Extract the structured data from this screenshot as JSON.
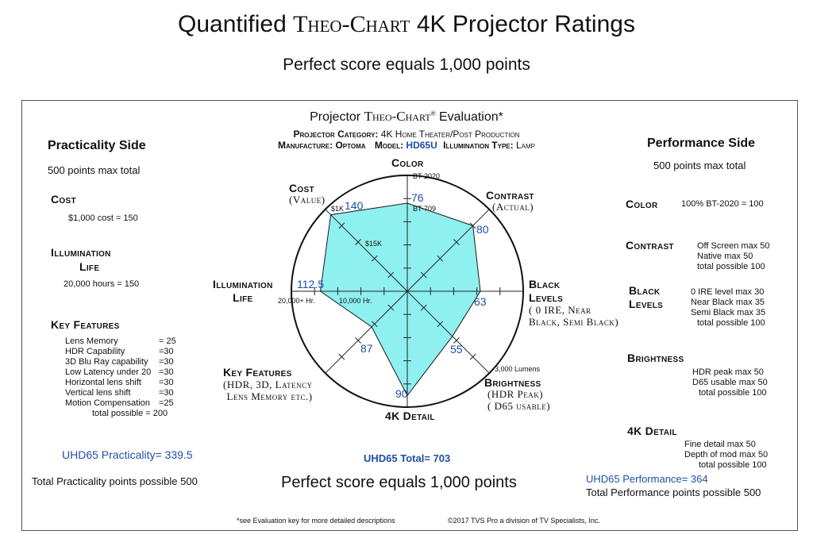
{
  "header": {
    "title_a": "Quantified",
    "title_b": "Theo-Chart",
    "title_c": "4K Projector Ratings",
    "subtitle": "Perfect score equals 1,000 points"
  },
  "evaluation": {
    "title_a": "Projector",
    "title_b": "Theo-Chart",
    "title_reg": "®",
    "title_c": "Evaluation*",
    "category_label": "Projector Category:",
    "category_value": "4K Home Theater/Post Production",
    "manufacture_label": "Manufacture:",
    "manufacture_value": "Optoma",
    "model_label": "Model:",
    "model_value": "HD65U",
    "illum_label": "Illumination Type:",
    "illum_value": "Lamp"
  },
  "practicality": {
    "title": "Practicality Side",
    "max_total": "500 points max total",
    "cost_title": "Cost",
    "cost_rule": "$1,000 cost  = 150",
    "illum_title_1": "Illumination",
    "illum_title_2": "Life",
    "illum_rule": "20,000 hours  = 150",
    "key_title": "Key Features",
    "key_rules": [
      {
        "label": "Lens Memory",
        "value": "= 25"
      },
      {
        "label": "HDR Capability",
        "value": "=30"
      },
      {
        "label": "3D Blu Ray capability",
        "value": "=30"
      },
      {
        "label": "Low Latency under 20",
        "value": "=30"
      },
      {
        "label": "Horizontal lens shift",
        "value": "=30"
      },
      {
        "label": "Vertical lens shift",
        "value": "=30"
      },
      {
        "label": "Motion Compensation",
        "value": "=25"
      }
    ],
    "key_total": "total possible  = 200",
    "score": "UHD65 Practicality= 339.5",
    "total_possible": "Total Practicality points possible 500"
  },
  "performance": {
    "title": "Performance Side",
    "max_total": "500 points max total",
    "color_title": "Color",
    "color_rule": "100% BT-2020 = 100",
    "contrast_title": "Contrast",
    "contrast_rules": [
      "Off Screen max 50",
      "Native        max 50",
      "total possible  100"
    ],
    "black_title_1": "Black",
    "black_title_2": "Levels",
    "black_rules": [
      "0 IRE level max  30",
      "Near Black max  35",
      "Semi Black max  35",
      "total possible  100"
    ],
    "brightness_title": "Brightness",
    "brightness_rules": [
      "HDR  peak max 50",
      "D65 usable max 50",
      "total possible 100"
    ],
    "detail_title": "4K Detail",
    "detail_rules": [
      "Fine detail max     50",
      "Depth of mod max 50",
      "total possible  100"
    ],
    "score": "UHD65 Performance= 364",
    "total_possible": "Total Performance points possible 500"
  },
  "footer": {
    "total": "UHD65 Total= 703",
    "perfect": "Perfect score equals 1,000 points",
    "note": "*see Evaluation key for more detailed descriptions",
    "copyright": "©2017 TVS Pro a division of TV Specialists, Inc."
  },
  "chart_data": {
    "type": "radar",
    "fill_color": "#8ff0f0",
    "outline_color": "#1a1a1a",
    "axes": [
      {
        "key": "color",
        "label": "Color",
        "sub": "",
        "value": 76,
        "max": 100,
        "value_label": "76"
      },
      {
        "key": "contrast",
        "label": "Contrast",
        "sub": "(Actual)",
        "value": 80,
        "max": 100,
        "value_label": "80"
      },
      {
        "key": "black",
        "label": "Black Levels",
        "sub": "( 0 IRE, Near Black, Semi Black)",
        "value": 63,
        "max": 100,
        "value_label": "63"
      },
      {
        "key": "brightness",
        "label": "Brightness",
        "sub": "(HDR Peak) ( D65 usable)",
        "value": 55,
        "max": 100,
        "value_label": "55"
      },
      {
        "key": "detail",
        "label": "4K Detail",
        "sub": "",
        "value": 90,
        "max": 100,
        "value_label": "90"
      },
      {
        "key": "features",
        "label": "Key Features",
        "sub": "(HDR, 3D, Latency Lens Memory etc.)",
        "value": 87,
        "max": 200,
        "value_label": "87"
      },
      {
        "key": "illumination",
        "label": "Illumination Life",
        "sub": "",
        "value": 112.5,
        "max": 150,
        "value_label": "112.5"
      },
      {
        "key": "cost",
        "label": "Cost",
        "sub": "(Value)",
        "value": 140,
        "max": 150,
        "value_label": "140"
      }
    ],
    "scale_labels": {
      "bt2020": "BT-2020",
      "bt709": "BT-709",
      "cost_1k": "$1K",
      "cost_15k": "$15K",
      "illum_max": "20,000+ Hr.",
      "illum_10k": "10,000 Hr.",
      "lumens": "3,000 Lumens"
    }
  }
}
